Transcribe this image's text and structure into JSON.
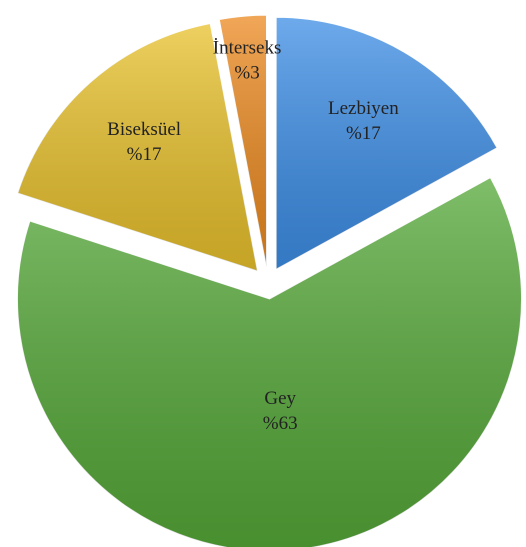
{
  "chart_data": {
    "type": "pie",
    "categories": [
      "Lezbiyen",
      "Gey",
      "Biseksüel",
      "İnterseks"
    ],
    "values": [
      17,
      63,
      17,
      3
    ],
    "value_labels": [
      "%17",
      "%63",
      "%17",
      "%3"
    ],
    "colors": [
      "#3d8ee6",
      "#55a838",
      "#e8c12c",
      "#ec8a20"
    ]
  }
}
